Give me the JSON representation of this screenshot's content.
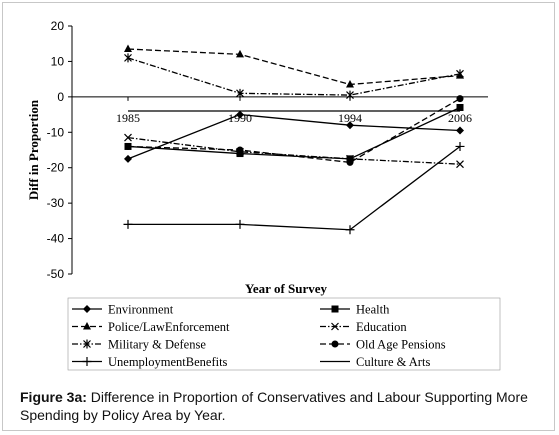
{
  "chart_data": {
    "type": "line",
    "x": [
      1985,
      1990,
      1994,
      2006
    ],
    "xlabel": "Year of Survey",
    "ylabel": "Diff in Proportion",
    "ylim": [
      -50,
      20
    ],
    "yticks": [
      20,
      10,
      0,
      -10,
      -20,
      -30,
      -40,
      -50
    ],
    "grid": false,
    "legend_position": "bottom",
    "series": [
      {
        "name": "Environment",
        "values": [
          -17.5,
          -5,
          -8,
          -9.5
        ],
        "marker": "diamond",
        "dash": "solid"
      },
      {
        "name": "Health",
        "values": [
          -14,
          -16,
          -17.5,
          -3
        ],
        "marker": "square",
        "dash": "solid"
      },
      {
        "name": "Police/LawEnforcement",
        "values": [
          13.5,
          12,
          3.5,
          6
        ],
        "marker": "triangle",
        "dash": "dashed"
      },
      {
        "name": "Education",
        "values": [
          -11.5,
          -15.5,
          -17.5,
          -19
        ],
        "marker": "x",
        "dash": "dashdot"
      },
      {
        "name": "Military & Defense",
        "values": [
          11,
          1,
          0.5,
          6.5
        ],
        "marker": "star",
        "dash": "dashdot"
      },
      {
        "name": "Old Age Pensions",
        "values": [
          -14,
          -15,
          -18.5,
          -0.5
        ],
        "marker": "circle",
        "dash": "dashed"
      },
      {
        "name": "UnemploymentBenefits",
        "values": [
          -36,
          -36,
          -37.5,
          -14
        ],
        "marker": "plus",
        "dash": "solid"
      },
      {
        "name": "Culture & Arts",
        "values": [
          -4,
          -4,
          -4,
          -4
        ],
        "marker": "none",
        "dash": "solid"
      }
    ]
  },
  "caption": {
    "label": "Figure 3a:",
    "text": "  Difference in Proportion of Conservatives and Labour Supporting More Spending by Policy Area by Year."
  }
}
